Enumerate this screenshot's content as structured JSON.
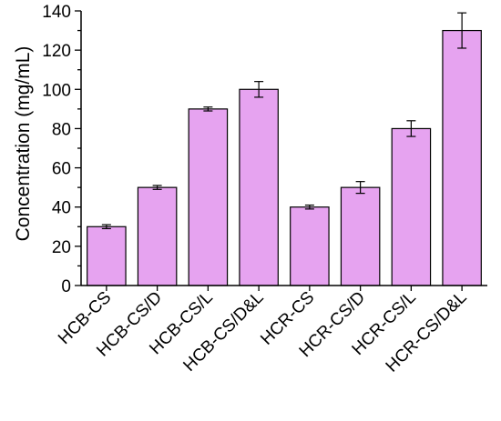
{
  "chart_data": {
    "type": "bar",
    "categories": [
      "HCB-CS",
      "HCB-CS/D",
      "HCB-CS/L",
      "HCB-CS/D&L",
      "HCR-CS",
      "HCR-CS/D",
      "HCR-CS/L",
      "HCR-CS/D&L"
    ],
    "values": [
      30,
      50,
      90,
      100,
      40,
      50,
      80,
      130
    ],
    "errors": [
      1,
      1,
      1,
      4,
      1,
      3,
      4,
      9
    ],
    "title": "",
    "xlabel": "",
    "ylabel": "Concentration (mg/mL)",
    "ylim": [
      0,
      140
    ],
    "yticks": [
      "0",
      "20",
      "40",
      "60",
      "80",
      "100",
      "120",
      "140"
    ],
    "grid": false,
    "bar_color": "#e6a3f0",
    "edge_color": "#000000"
  }
}
